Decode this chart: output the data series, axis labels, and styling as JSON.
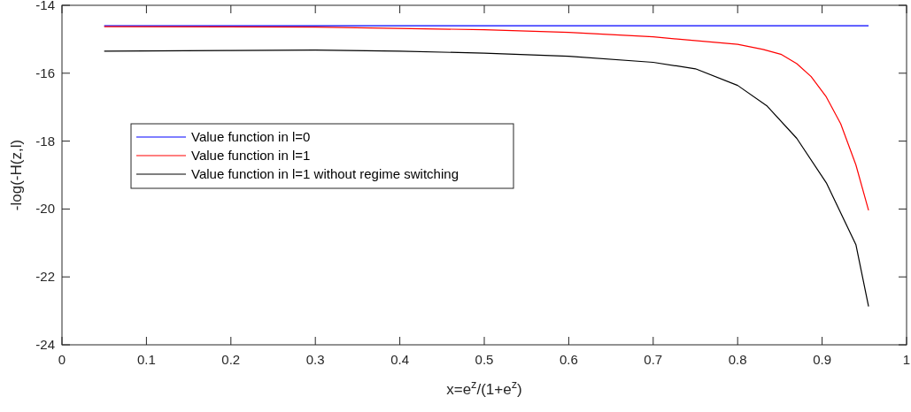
{
  "chart_data": {
    "type": "line",
    "xlabel": "x=e$^{z}$/(1+e$^{z}$)",
    "ylabel": "-log(-H(z,l)",
    "xlim": [
      0,
      1
    ],
    "ylim": [
      -24,
      -14
    ],
    "xticks": [
      0,
      0.1,
      0.2,
      0.3,
      0.4,
      0.5,
      0.6,
      0.7,
      0.8,
      0.9,
      1
    ],
    "yticks": [
      -24,
      -22,
      -20,
      -18,
      -16,
      -14
    ],
    "grid": false,
    "legend": "left",
    "series": [
      {
        "name": "Value function in l=0",
        "color": "#0000ff",
        "x": [
          0.05,
          0.955
        ],
        "values": [
          -14.6,
          -14.6
        ]
      },
      {
        "name": "Value function in l=1",
        "color": "#ff0000",
        "x": [
          0.05,
          0.3,
          0.5,
          0.6,
          0.7,
          0.8,
          0.83,
          0.852,
          0.87,
          0.887,
          0.905,
          0.922,
          0.94,
          0.955
        ],
        "values": [
          -14.63,
          -14.64,
          -14.72,
          -14.8,
          -14.93,
          -15.15,
          -15.3,
          -15.45,
          -15.72,
          -16.1,
          -16.7,
          -17.49,
          -18.7,
          -20.04
        ]
      },
      {
        "name": "Value function in l=1 without regime switching",
        "color": "#000000",
        "x": [
          0.05,
          0.2,
          0.3,
          0.4,
          0.5,
          0.6,
          0.7,
          0.75,
          0.8,
          0.835,
          0.87,
          0.905,
          0.94,
          0.955
        ],
        "values": [
          -15.35,
          -15.33,
          -15.32,
          -15.35,
          -15.41,
          -15.5,
          -15.68,
          -15.87,
          -16.36,
          -16.97,
          -17.92,
          -19.23,
          -21.05,
          -22.87
        ]
      }
    ]
  }
}
